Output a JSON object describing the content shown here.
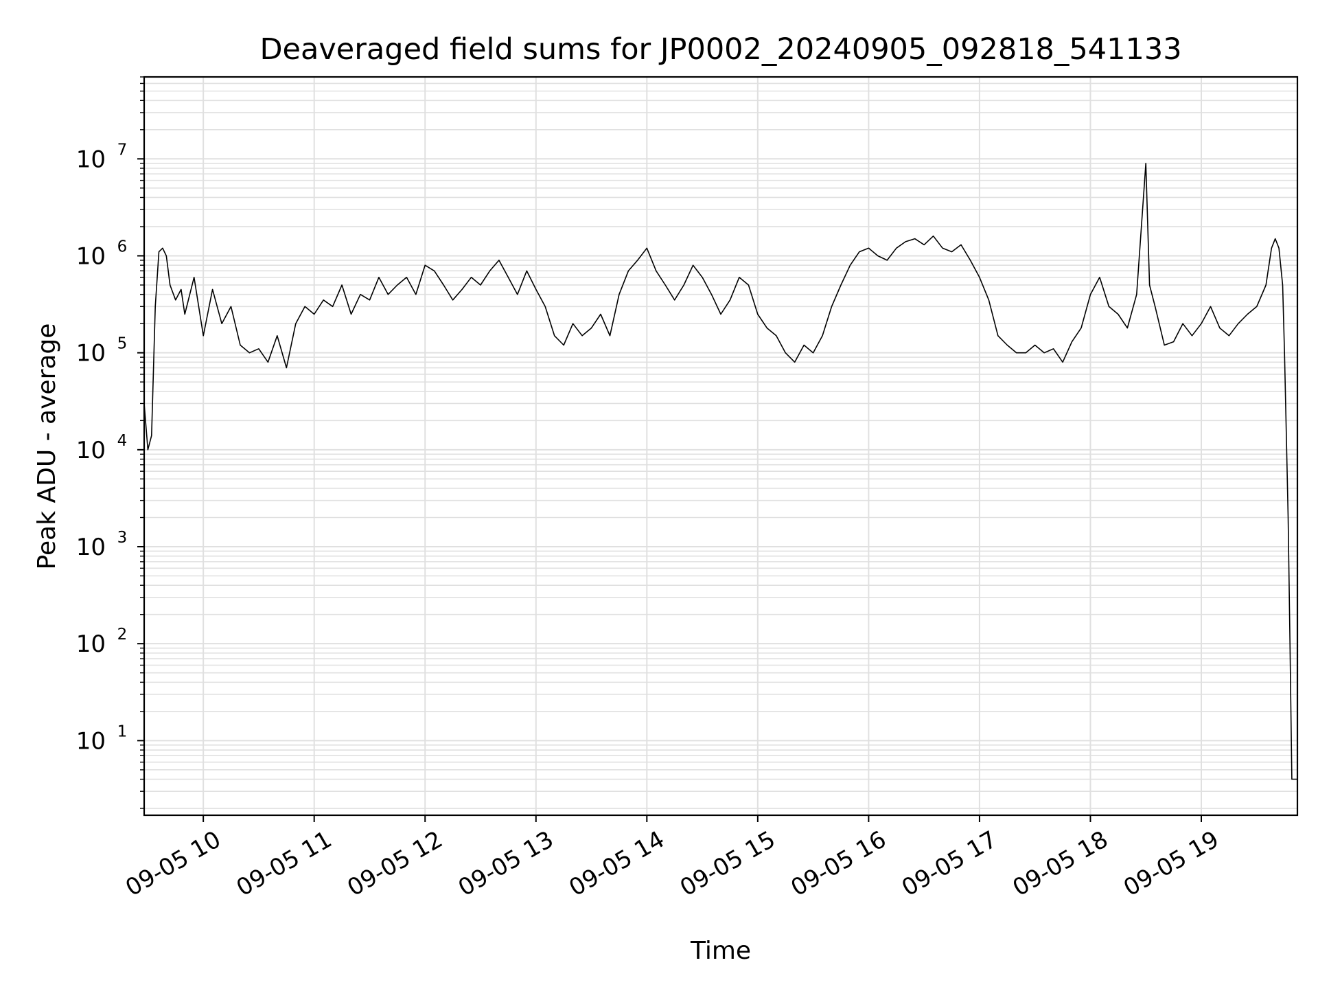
{
  "chart_data": {
    "type": "line",
    "title": "Deaveraged field sums for JP0002_20240905_092818_541133",
    "xlabel": "Time",
    "ylabel": "Peak ADU - average",
    "yscale": "log",
    "ylim": [
      1.7,
      70000000
    ],
    "xlim": [
      "09-05 09:28",
      "09-05 19:52"
    ],
    "grid": true,
    "line_color": "#000000",
    "grid_color": "#e0e0e0",
    "x_ticks": [
      "09-05 10",
      "09-05 11",
      "09-05 12",
      "09-05 13",
      "09-05 14",
      "09-05 15",
      "09-05 16",
      "09-05 17",
      "09-05 18",
      "09-05 19"
    ],
    "y_ticks": [
      {
        "base": "10",
        "exp": "1"
      },
      {
        "base": "10",
        "exp": "2"
      },
      {
        "base": "10",
        "exp": "3"
      },
      {
        "base": "10",
        "exp": "4"
      },
      {
        "base": "10",
        "exp": "5"
      },
      {
        "base": "10",
        "exp": "6"
      },
      {
        "base": "10",
        "exp": "7"
      }
    ],
    "series": [
      {
        "x": [
          "09:28",
          "09:30",
          "09:32",
          "09:34",
          "09:36",
          "09:38",
          "09:40",
          "09:42",
          "09:45",
          "09:48",
          "09:50",
          "09:55",
          "10:00",
          "10:05",
          "10:10",
          "10:15",
          "10:20",
          "10:25",
          "10:30",
          "10:35",
          "10:40",
          "10:45",
          "10:50",
          "10:55",
          "11:00",
          "11:05",
          "11:10",
          "11:15",
          "11:20",
          "11:25",
          "11:30",
          "11:35",
          "11:40",
          "11:45",
          "11:50",
          "11:55",
          "12:00",
          "12:05",
          "12:10",
          "12:15",
          "12:20",
          "12:25",
          "12:30",
          "12:35",
          "12:40",
          "12:45",
          "12:50",
          "12:55",
          "13:00",
          "13:05",
          "13:10",
          "13:15",
          "13:20",
          "13:25",
          "13:30",
          "13:35",
          "13:40",
          "13:45",
          "13:50",
          "13:55",
          "14:00",
          "14:05",
          "14:10",
          "14:15",
          "14:20",
          "14:25",
          "14:30",
          "14:35",
          "14:40",
          "14:45",
          "14:50",
          "14:55",
          "15:00",
          "15:05",
          "15:10",
          "15:15",
          "15:20",
          "15:25",
          "15:30",
          "15:35",
          "15:40",
          "15:45",
          "15:50",
          "15:55",
          "16:00",
          "16:05",
          "16:10",
          "16:15",
          "16:20",
          "16:25",
          "16:30",
          "16:35",
          "16:40",
          "16:45",
          "16:50",
          "16:55",
          "17:00",
          "17:05",
          "17:10",
          "17:15",
          "17:20",
          "17:25",
          "17:30",
          "17:35",
          "17:40",
          "17:45",
          "17:50",
          "17:55",
          "18:00",
          "18:05",
          "18:10",
          "18:15",
          "18:20",
          "18:25",
          "18:30",
          "18:32",
          "18:35",
          "18:40",
          "18:45",
          "18:50",
          "18:55",
          "19:00",
          "19:05",
          "19:10",
          "19:15",
          "19:20",
          "19:25",
          "19:30",
          "19:35",
          "19:38",
          "19:40",
          "19:42",
          "19:44",
          "19:45",
          "19:46",
          "19:47",
          "19:48",
          "19:49",
          "19:50",
          "19:52"
        ],
        "y": [
          30000,
          10000,
          14000,
          300000,
          1100000,
          1200000,
          1000000,
          500000,
          350000,
          450000,
          250000,
          600000,
          150000,
          450000,
          200000,
          300000,
          120000,
          100000,
          110000,
          80000,
          150000,
          70000,
          200000,
          300000,
          250000,
          350000,
          300000,
          500000,
          250000,
          400000,
          350000,
          600000,
          400000,
          500000,
          600000,
          400000,
          800000,
          700000,
          500000,
          350000,
          450000,
          600000,
          500000,
          700000,
          900000,
          600000,
          400000,
          700000,
          450000,
          300000,
          150000,
          120000,
          200000,
          150000,
          180000,
          250000,
          150000,
          400000,
          700000,
          900000,
          1200000,
          700000,
          500000,
          350000,
          500000,
          800000,
          600000,
          400000,
          250000,
          350000,
          600000,
          500000,
          250000,
          180000,
          150000,
          100000,
          80000,
          120000,
          100000,
          150000,
          300000,
          500000,
          800000,
          1100000,
          1200000,
          1000000,
          900000,
          1200000,
          1400000,
          1500000,
          1300000,
          1600000,
          1200000,
          1100000,
          1300000,
          900000,
          600000,
          350000,
          150000,
          120000,
          100000,
          100000,
          120000,
          100000,
          110000,
          80000,
          130000,
          180000,
          400000,
          600000,
          300000,
          250000,
          180000,
          400000,
          9000000,
          500000,
          300000,
          120000,
          130000,
          200000,
          150000,
          200000,
          300000,
          180000,
          150000,
          200000,
          250000,
          300000,
          500000,
          1200000,
          1500000,
          1200000,
          500000,
          100000,
          15000,
          2000,
          100,
          4,
          4,
          4
        ]
      }
    ]
  }
}
